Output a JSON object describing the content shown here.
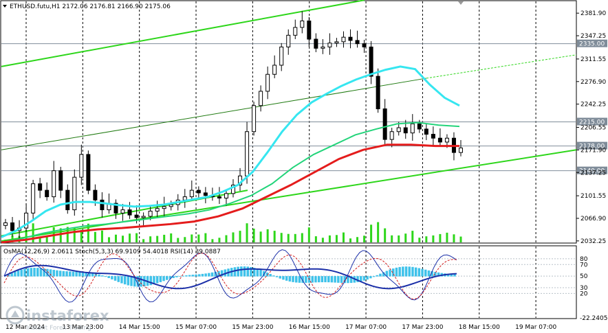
{
  "header": {
    "main_title": "ETHUSD.futu,H1  2172.06 2176.81 2166.90 2175.06",
    "indicator_title": "OsMA(12,26,9) 2.0611   Stoch(5,3,3) 69.9109 54.4018   RSI(14) 39.0887"
  },
  "watermark": {
    "brand": "instaforex",
    "tagline": "Instant Forex Trading"
  },
  "colors": {
    "bull": "#000000",
    "bear": "#000000",
    "ma_fast": "#36e6f0",
    "ma_mid": "#22d47a",
    "ma_slow": "#e41c1c",
    "channel": "#2dd61a",
    "level_line": "#7f8c99",
    "osma": "#3fc2ea",
    "stoch_main": "#1b2fa8",
    "stoch_signal": "#d21b1b",
    "rsi": "#1b2fa8"
  },
  "chart_data": {
    "type": "candlestick",
    "symbol": "ETHUSD.futu",
    "timeframe": "H1",
    "ohlc_last": {
      "open": 2172.06,
      "high": 2176.81,
      "low": 2166.9,
      "close": 2175.06
    },
    "y_ticks": [
      2381.9,
      2347.25,
      2311.55,
      2276.9,
      2242.25,
      2206.55,
      2171.9,
      2137.25,
      2101.55,
      2066.9,
      2032.25
    ],
    "ylim": [
      2030,
      2400
    ],
    "x_ticks": [
      "12 Mar 2024",
      "13 Mar 23:00",
      "14 Mar 15:00",
      "15 Mar 07:00",
      "15 Mar 23:00",
      "16 Mar 15:00",
      "17 Mar 07:00",
      "17 Mar 23:00",
      "18 Mar 15:00",
      "19 Mar 07:00"
    ],
    "levels": [
      {
        "label": "2335.00",
        "value": 2335.0
      },
      {
        "label": "2215.00",
        "value": 2215.0
      },
      {
        "label": "2178.00",
        "value": 2178.0
      },
      {
        "label": "2140.00",
        "value": 2140.0
      }
    ],
    "price_series": [
      2060,
      2048,
      2052,
      2075,
      2120,
      2110,
      2100,
      2140,
      2110,
      2080,
      2130,
      2165,
      2110,
      2095,
      2080,
      2090,
      2075,
      2080,
      2072,
      2068,
      2070,
      2078,
      2082,
      2085,
      2088,
      2095,
      2100,
      2110,
      2106,
      2102,
      2100,
      2098,
      2105,
      2118,
      2132,
      2200,
      2240,
      2262,
      2288,
      2302,
      2330,
      2348,
      2360,
      2370,
      2342,
      2328,
      2330,
      2336,
      2338,
      2345,
      2340,
      2335,
      2330,
      2285,
      2235,
      2188,
      2200,
      2206,
      2198,
      2212,
      2204,
      2196,
      2190,
      2184,
      2190,
      2168,
      2175
    ],
    "ma_fast": [
      2038,
      2048,
      2062,
      2078,
      2088,
      2092,
      2092,
      2090,
      2087,
      2085,
      2086,
      2088,
      2092,
      2096,
      2100,
      2108,
      2118,
      2138,
      2168,
      2200,
      2226,
      2245,
      2258,
      2270,
      2280,
      2288,
      2295,
      2300,
      2296,
      2272,
      2252,
      2240
    ],
    "ma_mid": [
      2030,
      2036,
      2044,
      2050,
      2055,
      2058,
      2062,
      2066,
      2070,
      2074,
      2080,
      2090,
      2102,
      2120,
      2145,
      2165,
      2180,
      2195,
      2204,
      2212,
      2214,
      2210,
      2208
    ],
    "ma_slow": [
      2030,
      2034,
      2040,
      2046,
      2050,
      2052,
      2055,
      2058,
      2062,
      2070,
      2082,
      2100,
      2118,
      2138,
      2158,
      2172,
      2180,
      2180,
      2178,
      2178
    ],
    "indicator": {
      "levels": [
        80,
        70,
        50,
        30,
        20
      ],
      "axis_labels": [
        "80",
        "70",
        "50",
        "30",
        "20",
        "-22.2405"
      ],
      "rsi_last": 39.0887,
      "stoch_main_last": 69.9109,
      "stoch_signal_last": 54.4018,
      "osma_last": 2.0611
    }
  }
}
